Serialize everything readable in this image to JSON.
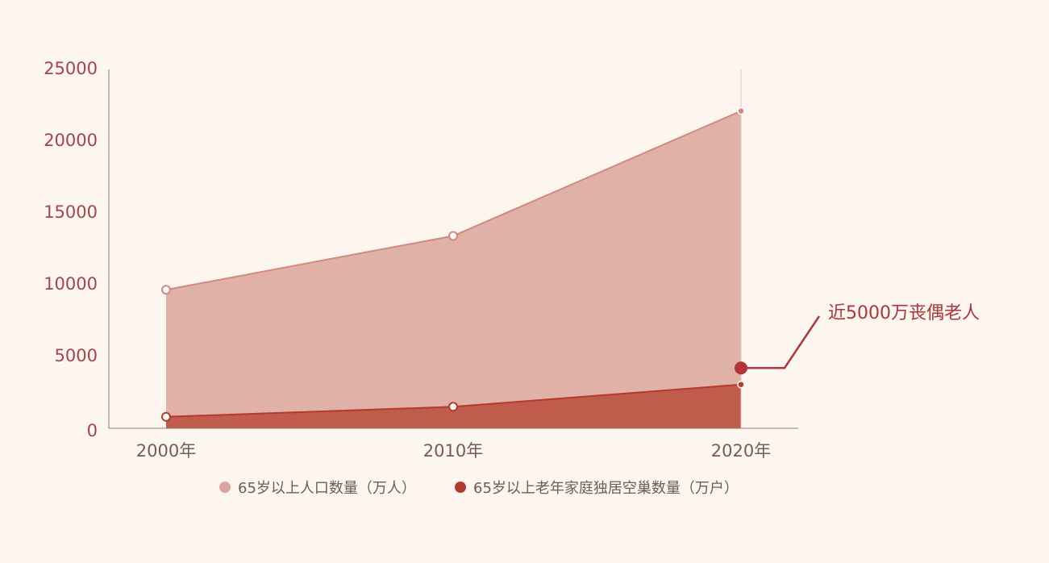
{
  "chart_data": {
    "type": "area",
    "categories": [
      "2000年",
      "2010年",
      "2020年"
    ],
    "ylim": [
      0,
      25000
    ],
    "yticks": [
      0,
      5000,
      10000,
      15000,
      20000,
      25000
    ],
    "grid": false,
    "legend_position": "bottom-center",
    "series": [
      {
        "name": "65岁以上人口数量（万人）",
        "values": [
          9650,
          13400,
          22100
        ],
        "fill": "#e0b1a6",
        "stroke": "#d4897c",
        "legend_color": "#daa59a"
      },
      {
        "name": "65岁以上老年家庭独居空巢数量（万户）",
        "values": [
          800,
          1500,
          3050
        ],
        "fill": "#c05c4b",
        "stroke": "#b5392d",
        "legend_color": "#b53a2e"
      }
    ],
    "annotation": {
      "text": "近5000万丧偶老人",
      "category": "2020年",
      "value": 4200,
      "color": "#b2343a"
    }
  }
}
